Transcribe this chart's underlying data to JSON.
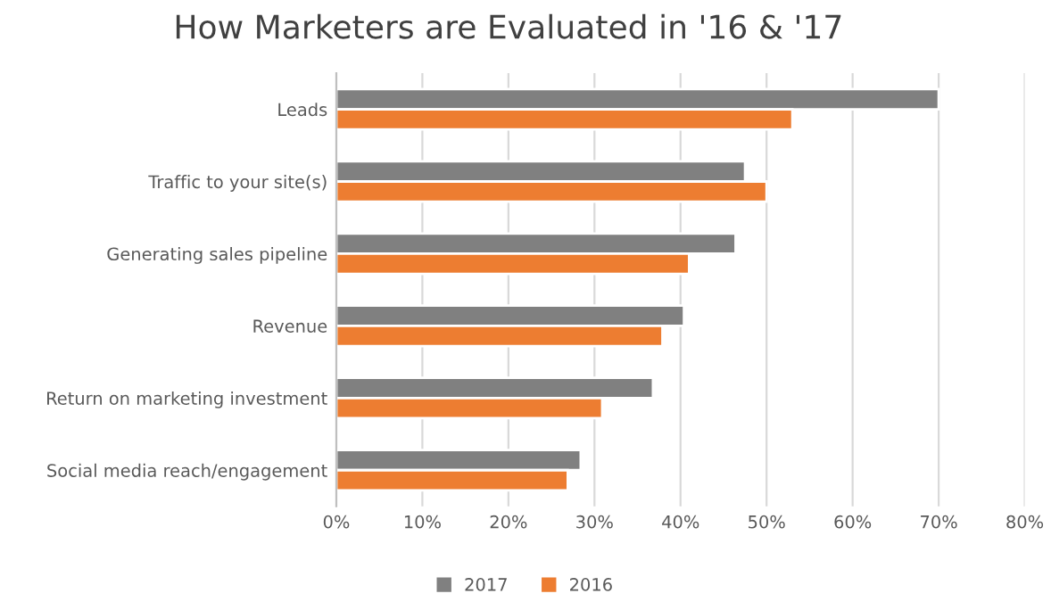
{
  "chart_data": {
    "type": "bar",
    "orientation": "horizontal",
    "title": "How Marketers are Evaluated in '16 & '17",
    "categories": [
      "Leads",
      "Traffic to your site(s)",
      "Generating sales pipeline",
      "Revenue",
      "Return on marketing investment",
      "Social media reach/engagement"
    ],
    "series": [
      {
        "name": "2017",
        "color": "#808080",
        "values": [
          70,
          47.5,
          46.4,
          40.4,
          36.8,
          28.4
        ]
      },
      {
        "name": "2016",
        "color": "#ed7d31",
        "values": [
          53,
          50,
          41,
          37.9,
          30.9,
          26.9
        ]
      }
    ],
    "xlim": [
      0,
      80
    ],
    "xticks": [
      {
        "value": 0,
        "label": "0%"
      },
      {
        "value": 10,
        "label": "10%"
      },
      {
        "value": 20,
        "label": "20%"
      },
      {
        "value": 30,
        "label": "30%"
      },
      {
        "value": 40,
        "label": "40%"
      },
      {
        "value": 50,
        "label": "50%"
      },
      {
        "value": 60,
        "label": "60%"
      },
      {
        "value": 70,
        "label": "70%"
      },
      {
        "value": 80,
        "label": "80%"
      }
    ],
    "grid": "x",
    "legend": "bottom"
  }
}
